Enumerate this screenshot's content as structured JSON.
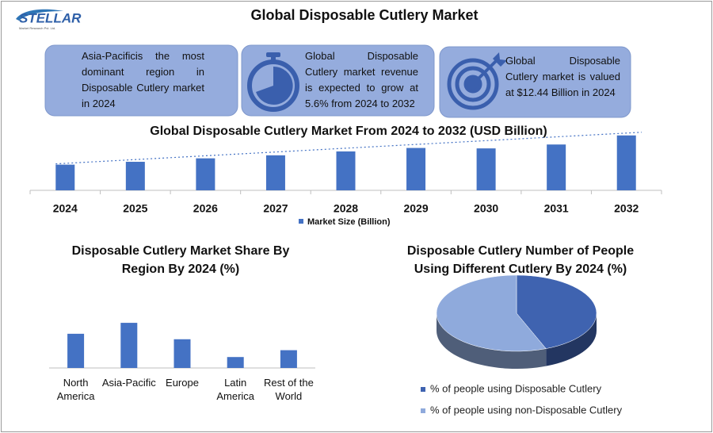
{
  "logo": {
    "name": "STELLAR",
    "tagline": "Market Research Pvt. Ltd."
  },
  "title": "Global Disposable Cutlery Market",
  "cards": [
    "Asia-Pacificis the most dominant region in Disposable Cutlery market in 2024",
    "Global Disposable Cutlery market revenue is expected to grow at 5.6% from 2024 to 2032",
    "Global Disposable Cutlery market is valued at $12.44 Billion in 2024"
  ],
  "chart_data": [
    {
      "type": "bar",
      "title": "Global Disposable Cutlery Market From 2024 to 2032 (USD Billion)",
      "categories": [
        "2024",
        "2025",
        "2026",
        "2027",
        "2028",
        "2029",
        "2030",
        "2031",
        "2032"
      ],
      "series": [
        {
          "name": "Market Size (Billion)",
          "color": "#4472c4",
          "values": [
            12.44,
            13.1,
            13.9,
            14.6,
            15.5,
            16.3,
            16.2,
            17.1,
            19.2
          ]
        }
      ],
      "ylim": [
        6.5,
        20
      ],
      "trendline": true
    },
    {
      "type": "bar",
      "title": "Disposable Cutlery  Market Share By Region By 2024 (%)",
      "categories": [
        "North America",
        "Asia-Pacific",
        "Europe",
        "Latin America",
        "Rest of the World"
      ],
      "values": [
        25,
        33,
        21,
        8,
        13
      ],
      "color": "#4472c4",
      "ylim": [
        0,
        40
      ]
    },
    {
      "type": "pie",
      "title": "Disposable Cutlery Number of People Using Different Cutlery By 2024 (%)",
      "categories": [
        "% of people using Disposable Cutlery",
        "% of people using non-Disposable Cutlery"
      ],
      "values": [
        44,
        56
      ],
      "colors": [
        "#3f63b0",
        "#8faadc"
      ]
    }
  ]
}
